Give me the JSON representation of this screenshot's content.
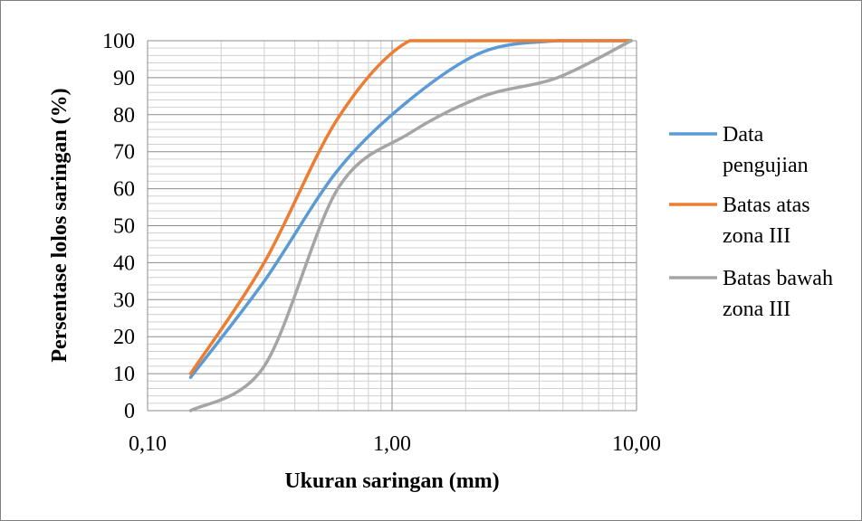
{
  "chart_data": {
    "type": "line",
    "title": "",
    "xlabel": "Ukuran saringan (mm)",
    "ylabel": "Persentase lolos saringan (%)",
    "x_scale": "log",
    "xlim": [
      0.1,
      10
    ],
    "ylim": [
      0,
      100
    ],
    "x_ticks": [
      {
        "value": 0.1,
        "label": "0,10"
      },
      {
        "value": 1,
        "label": "1,00"
      },
      {
        "value": 10,
        "label": "10,00"
      }
    ],
    "y_ticks": [
      {
        "value": 0,
        "label": "0"
      },
      {
        "value": 10,
        "label": "10"
      },
      {
        "value": 20,
        "label": "20"
      },
      {
        "value": 30,
        "label": "30"
      },
      {
        "value": 40,
        "label": "40"
      },
      {
        "value": 50,
        "label": "50"
      },
      {
        "value": 60,
        "label": "60"
      },
      {
        "value": 70,
        "label": "70"
      },
      {
        "value": 80,
        "label": "80"
      },
      {
        "value": 90,
        "label": "90"
      },
      {
        "value": 100,
        "label": "100"
      }
    ],
    "grid": true,
    "legend_position": "right",
    "series": [
      {
        "name": "Data pengujian",
        "legend_lines": [
          "Data",
          "pengujian"
        ],
        "color": "#5b9bd5",
        "x": [
          0.15,
          0.3,
          0.6,
          1.18,
          2.36,
          4.75,
          9.5
        ],
        "y": [
          9,
          35,
          65,
          84,
          97,
          100,
          100
        ]
      },
      {
        "name": "Batas atas zona III",
        "legend_lines": [
          "Batas atas",
          "zona III"
        ],
        "color": "#ed7d31",
        "x": [
          0.15,
          0.3,
          0.6,
          1.18,
          2.36,
          4.75,
          9.5
        ],
        "y": [
          10,
          40,
          79,
          100,
          100,
          100,
          100
        ]
      },
      {
        "name": "Batas bawah zona III",
        "legend_lines": [
          "Batas bawah",
          "zona III"
        ],
        "color": "#a5a5a5",
        "x": [
          0.15,
          0.3,
          0.6,
          1.18,
          2.36,
          4.75,
          9.5
        ],
        "y": [
          0,
          12,
          60,
          75,
          85,
          90,
          100
        ]
      }
    ]
  }
}
